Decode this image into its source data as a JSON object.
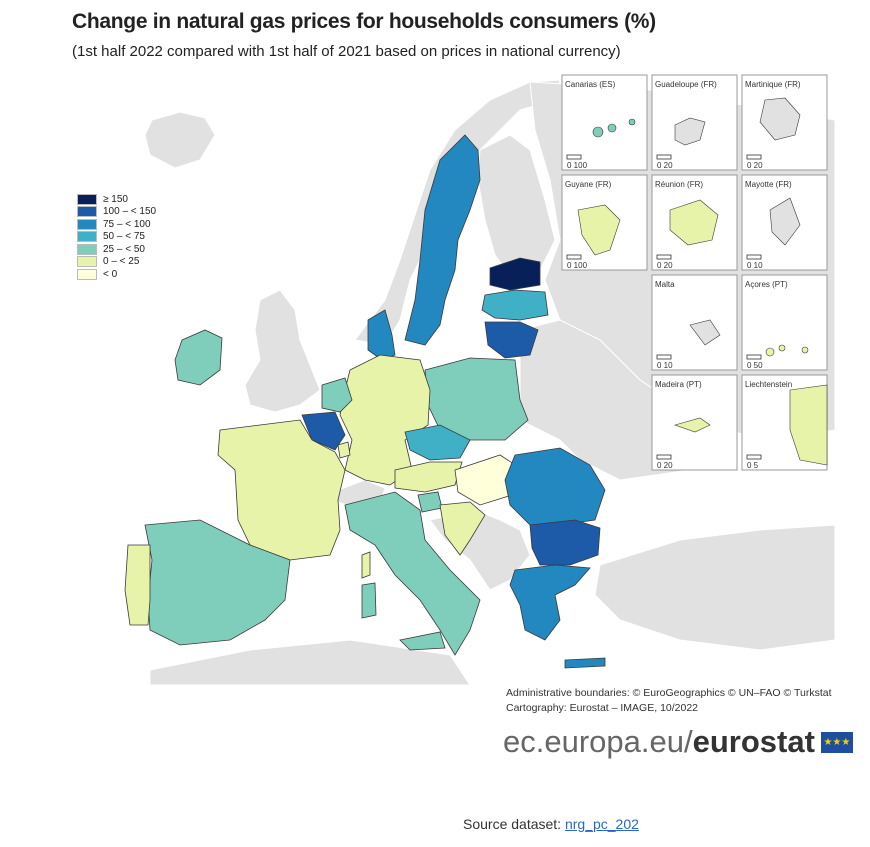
{
  "title": "Change in natural gas prices for households consumers (%)",
  "subtitle": "(1st half 2022 compared with 1st half of 2021 based on prices in national currency)",
  "legend": {
    "items": [
      {
        "label": "≥ 150",
        "color": "#08205a"
      },
      {
        "label": "100 – < 150",
        "color": "#1d5aa8"
      },
      {
        "label": "75 – < 100",
        "color": "#2387c0"
      },
      {
        "label": "50 – < 75",
        "color": "#40b0c6"
      },
      {
        "label": "25 – < 50",
        "color": "#7fcdbb"
      },
      {
        "label": "0 – < 25",
        "color": "#e6f3a8"
      },
      {
        "label": "< 0",
        "color": "#ffffd9"
      }
    ]
  },
  "colors": {
    "no_data": "#e1e1e1",
    "sea": "#ffffff",
    "border": "#3a3a3a"
  },
  "countries": {
    "estonia": "≥ 150",
    "lithuania": "100 – < 150",
    "belgium": "100 – < 150",
    "bulgaria": "100 – < 150",
    "sweden": "75 – < 100",
    "romania": "75 – < 100",
    "greece": "75 – < 100",
    "denmark": "75 – < 100",
    "latvia": "50 – < 75",
    "czechia": "50 – < 75",
    "poland": "25 – < 50",
    "italy": "25 – < 50",
    "spain": "25 – < 50",
    "ireland": "25 – < 50",
    "netherlands": "25 – < 50",
    "slovenia": "25 – < 50",
    "germany": "0 – < 25",
    "france": "0 – < 25",
    "austria": "0 – < 25",
    "portugal": "0 – < 25",
    "luxembourg": "0 – < 25",
    "croatia": "0 – < 25",
    "liechtenstein": "0 – < 25",
    "hungary": "< 0"
  },
  "insets": [
    {
      "name": "Canarias (ES)",
      "scale": "0   100"
    },
    {
      "name": "Guadeloupe (FR)",
      "scale": "0   20"
    },
    {
      "name": "Martinique (FR)",
      "scale": "0   20"
    },
    {
      "name": "Guyane (FR)",
      "scale": "0   100"
    },
    {
      "name": "Réunion (FR)",
      "scale": "0   20"
    },
    {
      "name": "Mayotte (FR)",
      "scale": "0   10"
    },
    {
      "name": "Malta",
      "scale": "0   10"
    },
    {
      "name": "Açores (PT)",
      "scale": "0   50"
    },
    {
      "name": "Madeira (PT)",
      "scale": "0   20"
    },
    {
      "name": "Liechtenstein",
      "scale": "0   5"
    }
  ],
  "credits": {
    "line1": "Administrative boundaries: © EuroGeographics © UN–FAO © Turkstat",
    "line2": "Cartography: Eurostat – IMAGE, 10/2022"
  },
  "brand": {
    "domain": "ec.europa.eu/",
    "name": "eurostat"
  },
  "source": {
    "label": "Source dataset: ",
    "link": "nrg_pc_202"
  }
}
